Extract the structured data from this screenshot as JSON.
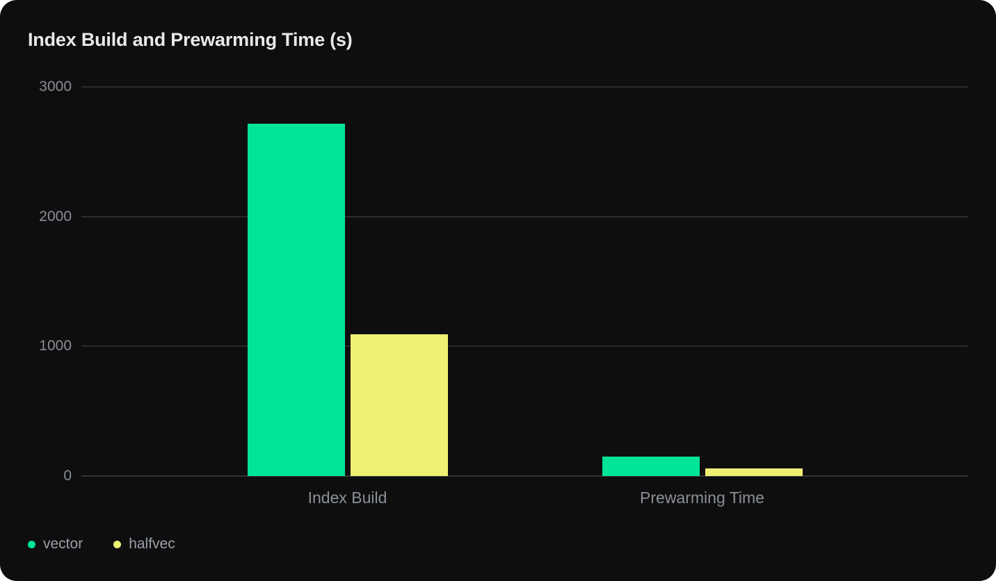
{
  "card": {
    "background": "#0e0e0f"
  },
  "chart_data": {
    "type": "bar",
    "title": "Index Build and Prewarming Time (s)",
    "unit": "s",
    "categories": [
      "Index Build",
      "Prewarming Time"
    ],
    "series": [
      {
        "name": "vector",
        "color": "#00e49a",
        "values": [
          2715,
          150
        ]
      },
      {
        "name": "halfvec",
        "color": "#eef073",
        "values": [
          1095,
          60
        ]
      }
    ],
    "xlabel": "",
    "ylabel": "",
    "ylim": [
      0,
      3000
    ],
    "yticks": [
      0,
      1000,
      2000,
      3000
    ],
    "grid": "horizontal",
    "legend_position": "bottom-left"
  },
  "colors": {
    "grid_line": "#2b2b2c",
    "baseline": "#333335",
    "tick_text": "#8a8f96",
    "category_text": "#8b9097",
    "legend_text": "#9aa0a8",
    "title_text": "#e9e9ea"
  }
}
